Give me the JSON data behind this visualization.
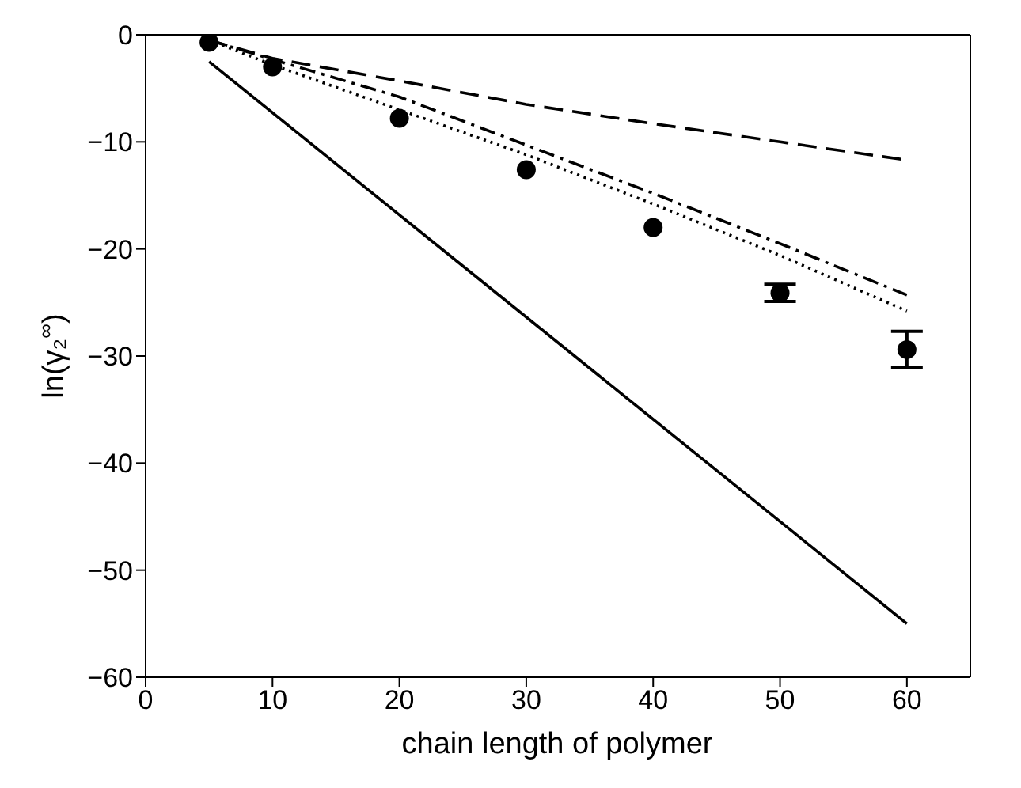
{
  "chart_data": {
    "type": "line",
    "xlabel": "chain length of polymer",
    "ylabel": "ln(γ₂$^{∞}$)",
    "xlim": [
      0,
      65
    ],
    "xticks": [
      0,
      10,
      20,
      30,
      40,
      50,
      60
    ],
    "ylim": [
      -60,
      0
    ],
    "yticks": [
      -60,
      -50,
      -40,
      -30,
      -20,
      -10,
      0
    ],
    "series": [
      {
        "type": "scatter",
        "color": "#000000",
        "marker": "circle",
        "x": [
          5,
          10,
          20,
          30,
          40,
          50,
          60
        ],
        "values": [
          -0.7,
          -3,
          -7.8,
          -12.6,
          -18,
          -24.1,
          -29.4
        ],
        "errors": [
          null,
          null,
          null,
          null,
          null,
          0.8,
          1.7
        ]
      },
      {
        "color": "#000000",
        "line_style": "solid",
        "marker": "none",
        "x": [
          5,
          60
        ],
        "values": [
          -2.5,
          -55
        ]
      },
      {
        "color": "#000000",
        "line_style": "dashed",
        "marker": "none",
        "x": [
          5,
          10,
          20,
          30,
          40,
          50,
          60
        ],
        "values": [
          -0.5,
          -2.2,
          -4.3,
          -6.5,
          -8.3,
          -10,
          -11.7
        ]
      },
      {
        "color": "#000000",
        "line_style": "dashdot",
        "marker": "none",
        "x": [
          5,
          10,
          20,
          30,
          40,
          50,
          60
        ],
        "values": [
          -0.5,
          -2.3,
          -5.8,
          -10.3,
          -14.8,
          -19.5,
          -24.3
        ]
      },
      {
        "color": "#000000",
        "line_style": "dotted",
        "marker": "none",
        "x": [
          5,
          10,
          20,
          30,
          40,
          50,
          60
        ],
        "values": [
          -0.5,
          -2.8,
          -7,
          -11.2,
          -15.8,
          -20.6,
          -25.8
        ]
      }
    ]
  }
}
